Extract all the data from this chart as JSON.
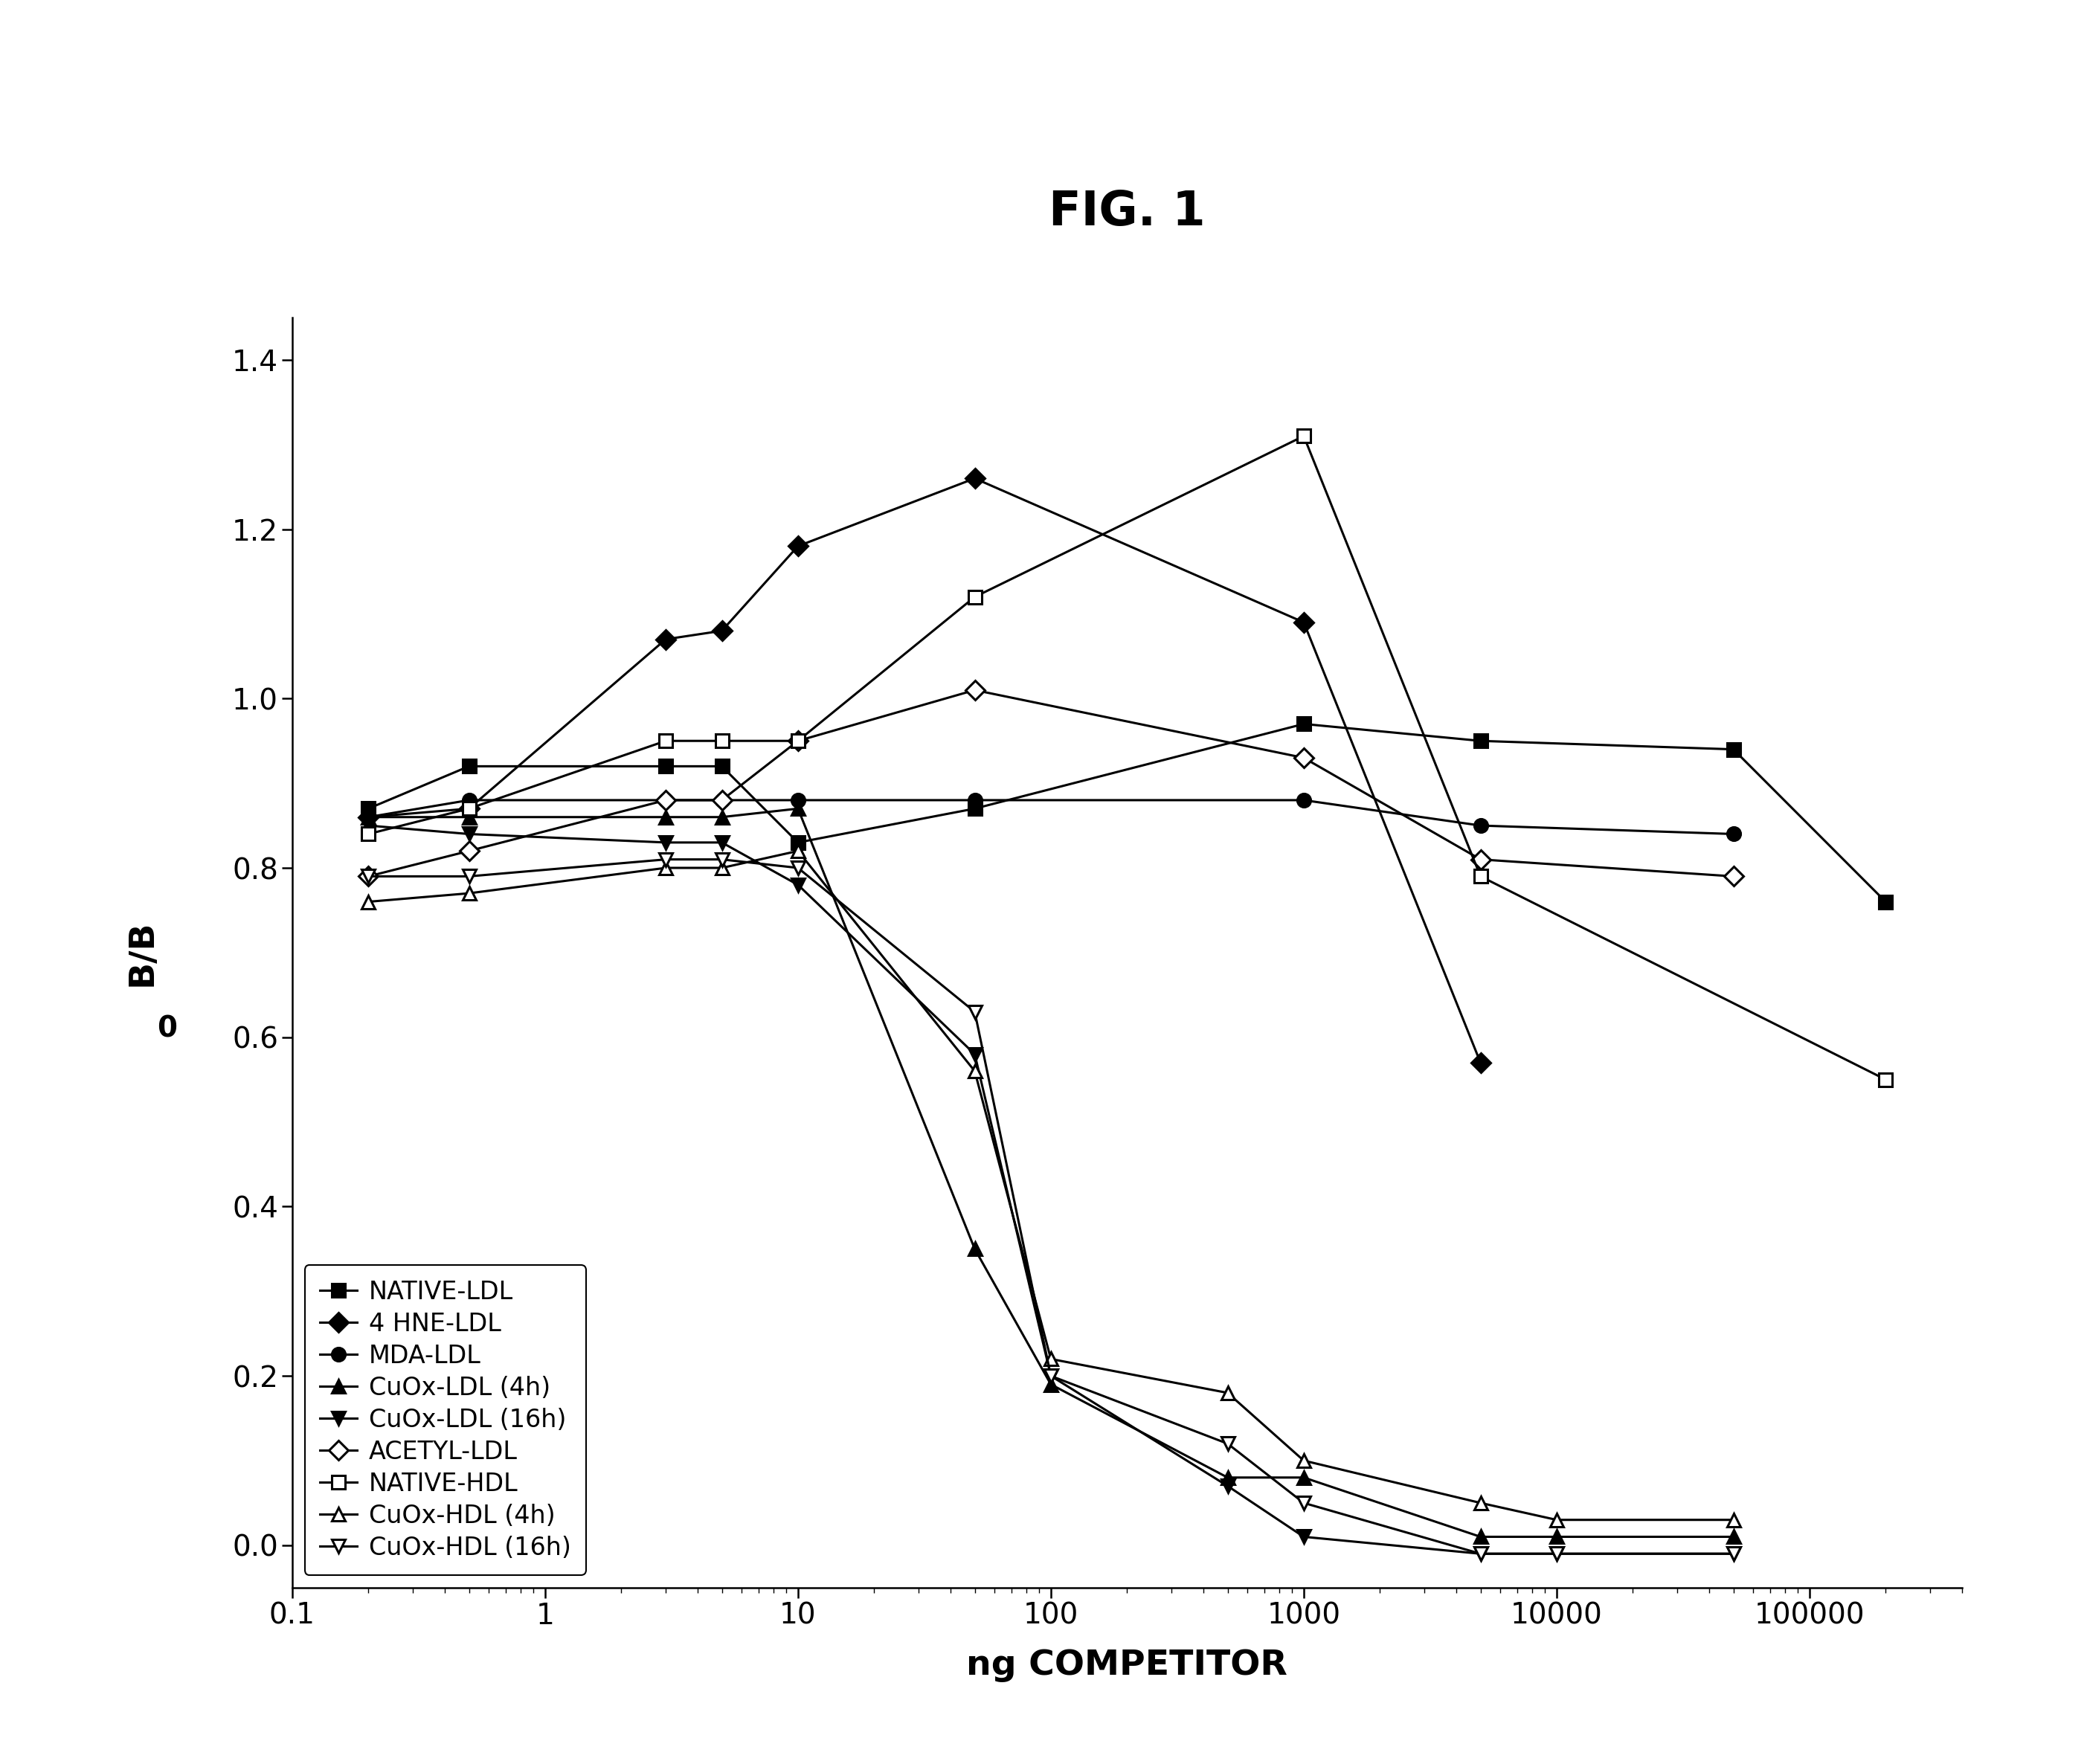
{
  "title": "FIG. 1",
  "xlabel": "ng COMPETITOR",
  "ylabel": "B/B",
  "ylabel_sub": "0",
  "xlim": [
    0.13,
    400000
  ],
  "ylim": [
    -0.05,
    1.45
  ],
  "yticks": [
    0.0,
    0.2,
    0.4,
    0.6,
    0.8,
    1.0,
    1.2,
    1.4
  ],
  "xticks": [
    0.1,
    1,
    10,
    100,
    1000,
    10000,
    100000
  ],
  "xticklabels": [
    "0.1",
    "1",
    "10",
    "100",
    "1000",
    "10000",
    "100000"
  ],
  "series": [
    {
      "label": "NATIVE-LDL",
      "x": [
        0.2,
        0.5,
        3,
        5,
        10,
        50,
        1000,
        5000,
        50000,
        200000
      ],
      "y": [
        0.87,
        0.92,
        0.92,
        0.92,
        0.83,
        0.87,
        0.97,
        0.95,
        0.94,
        0.76
      ],
      "marker": "s",
      "filled": true,
      "color": "black",
      "markersize": 13
    },
    {
      "label": "4 HNE-LDL",
      "x": [
        0.2,
        0.5,
        3,
        5,
        10,
        50,
        1000,
        5000,
        50000
      ],
      "y": [
        0.86,
        0.87,
        1.07,
        1.08,
        1.18,
        1.26,
        1.09,
        0.57,
        null
      ],
      "marker": "D",
      "filled": true,
      "color": "black",
      "markersize": 13
    },
    {
      "label": "MDA-LDL",
      "x": [
        0.2,
        0.5,
        3,
        5,
        10,
        50,
        1000,
        5000,
        50000
      ],
      "y": [
        0.86,
        0.88,
        0.88,
        0.88,
        0.88,
        0.88,
        0.88,
        0.85,
        0.84
      ],
      "marker": "o",
      "filled": true,
      "color": "black",
      "markersize": 13
    },
    {
      "label": "CuOx-LDL (4h)",
      "x": [
        0.2,
        0.5,
        3,
        5,
        10,
        50,
        100,
        500,
        1000,
        5000,
        10000,
        50000
      ],
      "y": [
        0.86,
        0.86,
        0.86,
        0.86,
        0.87,
        0.35,
        0.19,
        0.08,
        0.08,
        0.01,
        0.01,
        0.01
      ],
      "marker": "^",
      "filled": true,
      "color": "black",
      "markersize": 13
    },
    {
      "label": "CuOx-LDL (16h)",
      "x": [
        0.2,
        0.5,
        3,
        5,
        10,
        50,
        100,
        500,
        1000,
        5000,
        10000,
        50000
      ],
      "y": [
        0.85,
        0.84,
        0.83,
        0.83,
        0.78,
        0.58,
        0.2,
        0.07,
        0.01,
        -0.01,
        -0.01,
        -0.01
      ],
      "marker": "v",
      "filled": true,
      "color": "black",
      "markersize": 13
    },
    {
      "label": "ACETYL-LDL",
      "x": [
        0.2,
        0.5,
        3,
        5,
        10,
        50,
        1000,
        5000,
        50000
      ],
      "y": [
        0.79,
        0.82,
        0.88,
        0.88,
        0.95,
        1.01,
        0.93,
        0.81,
        0.79
      ],
      "marker": "D",
      "filled": false,
      "color": "black",
      "markersize": 13
    },
    {
      "label": "NATIVE-HDL",
      "x": [
        0.2,
        0.5,
        3,
        5,
        10,
        50,
        1000,
        5000,
        200000
      ],
      "y": [
        0.84,
        0.87,
        0.95,
        0.95,
        0.95,
        1.12,
        1.31,
        0.79,
        0.55
      ],
      "marker": "s",
      "filled": false,
      "color": "black",
      "markersize": 13
    },
    {
      "label": "CuOx-HDL (4h)",
      "x": [
        0.2,
        0.5,
        3,
        5,
        10,
        50,
        100,
        500,
        1000,
        5000,
        10000,
        50000
      ],
      "y": [
        0.76,
        0.77,
        0.8,
        0.8,
        0.82,
        0.56,
        0.22,
        0.18,
        0.1,
        0.05,
        0.03,
        0.03
      ],
      "marker": "^",
      "filled": false,
      "color": "black",
      "markersize": 13
    },
    {
      "label": "CuOx-HDL (16h)",
      "x": [
        0.2,
        0.5,
        3,
        5,
        10,
        50,
        100,
        500,
        1000,
        5000,
        10000,
        50000
      ],
      "y": [
        0.79,
        0.79,
        0.81,
        0.81,
        0.8,
        0.63,
        0.2,
        0.12,
        0.05,
        -0.01,
        -0.01,
        -0.01
      ],
      "marker": "v",
      "filled": false,
      "color": "black",
      "markersize": 13
    }
  ],
  "background_color": "#ffffff",
  "title_fontsize": 46,
  "label_fontsize": 34,
  "tick_fontsize": 28,
  "legend_fontsize": 24,
  "linewidth": 2.2
}
